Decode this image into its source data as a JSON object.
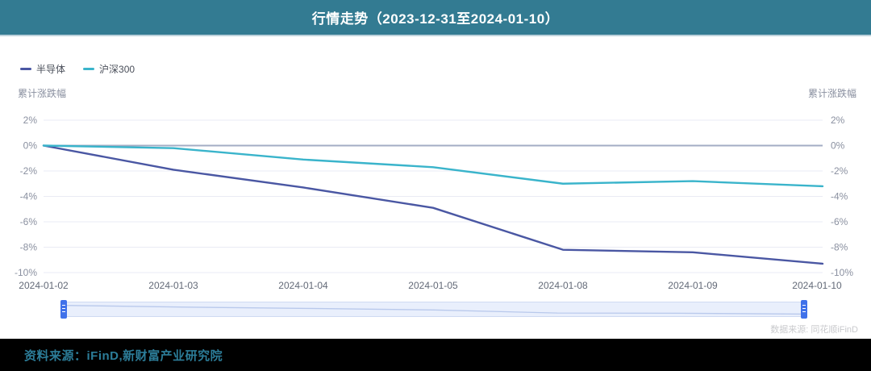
{
  "header": {
    "title": "行情走势（2023-12-31至2024-01-10）"
  },
  "legend": {
    "items": [
      {
        "label": "半导体",
        "color": "#4a57a3"
      },
      {
        "label": "沪深300",
        "color": "#3ab4cb"
      }
    ]
  },
  "chart_data": {
    "type": "line",
    "x": [
      "2024-01-02",
      "2024-01-03",
      "2024-01-04",
      "2024-01-05",
      "2024-01-08",
      "2024-01-09",
      "2024-01-10"
    ],
    "series": [
      {
        "name": "半导体",
        "color": "#4a57a3",
        "values": [
          0,
          -1.9,
          -3.3,
          -4.9,
          -8.2,
          -8.4,
          -9.3
        ]
      },
      {
        "name": "沪深300",
        "color": "#3ab4cb",
        "values": [
          0,
          -0.2,
          -1.1,
          -1.7,
          -3.0,
          -2.8,
          -3.2
        ]
      }
    ],
    "title": "行情走势（2023-12-31至2024-01-10）",
    "xlabel": "",
    "ylabel_left": "累计涨跌幅",
    "ylabel_right": "累计涨跌幅",
    "yticks": [
      2,
      0,
      -2,
      -4,
      -6,
      -8,
      -10
    ],
    "ytick_suffix": "%",
    "ylim": [
      -10,
      2
    ],
    "grid": true,
    "legend_position": "top-left"
  },
  "datazoom": {
    "start_label": "",
    "end_label": ""
  },
  "watermark": "数据来源: 同花顺iFinD",
  "footer": {
    "source_text": "资料来源：iFinD,新财富产业研究院"
  },
  "colors": {
    "header_bg": "#337b92",
    "header_divider": "#bdd2dc",
    "grid_line": "#e9ebf4",
    "zero_line": "#a3adc4",
    "y_tick_text": "#8a90a0",
    "x_tick_text": "#636a78",
    "slider_track": "#e9effc",
    "slider_border": "#cfdaf2",
    "slider_handle": "#3f71ea",
    "slider_shadow_line": "#b9c9ec",
    "footer_text": "#2c7d99"
  }
}
